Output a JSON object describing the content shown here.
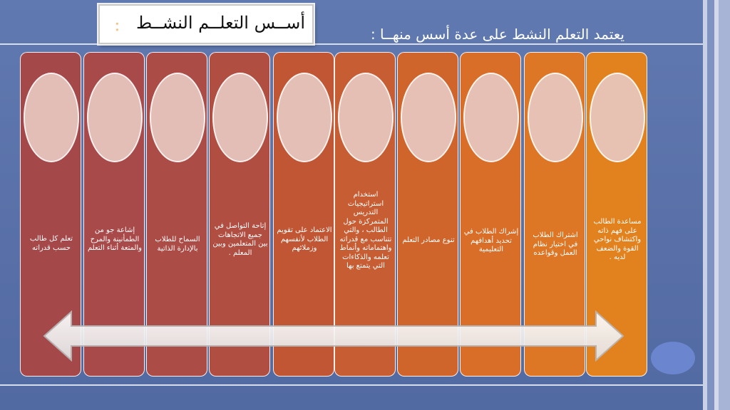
{
  "slide": {
    "title": "أســس التعلــم النشــط",
    "title_colon": ":",
    "intro": "يعتمد التعلم النشط على عدة أسس منهــا :"
  },
  "columns": [
    {
      "text": "تعلم كل طالب حسب قدراته",
      "color": "#a4484a"
    },
    {
      "text": "إشاعة جو من الطمأنينة والمرح والمتعة أثناء التعلم",
      "color": "#a8494a"
    },
    {
      "text": "السماح للطلاب بالإدارة الذاتية",
      "color": "#ac4c46"
    },
    {
      "text": "إتاحة التواصل في جميع الاتجاهات بين المتعلمين وبين المعلم .",
      "color": "#b04e42"
    },
    {
      "text": "الاعتماد على تقويم الطلاب لأنفسهم وزملائهم",
      "color": "#c05634"
    },
    {
      "text": "استخدام استراتيجيات التدريس المتمركزة حول الطالب ، والتي تتناسب مع قدراته واهتماماته وأنماط تعلمه والذكاءات التي يتمتع بها",
      "color": "#c65d33"
    },
    {
      "text": "تنوع مصادر التعلم",
      "color": "#d0652c"
    },
    {
      "text": "إشراك الطلاب في تحديد أهدافهم التعليمية",
      "color": "#d86e28"
    },
    {
      "text": "اشتراك الطلاب في اختيار نظام العمل وقواعده",
      "color": "#dd7625"
    },
    {
      "text": "مساعدة الطالب على فهم ذاته واكتشاف نواحي القوة والضعف لديه .",
      "color": "#e2821f"
    }
  ]
}
